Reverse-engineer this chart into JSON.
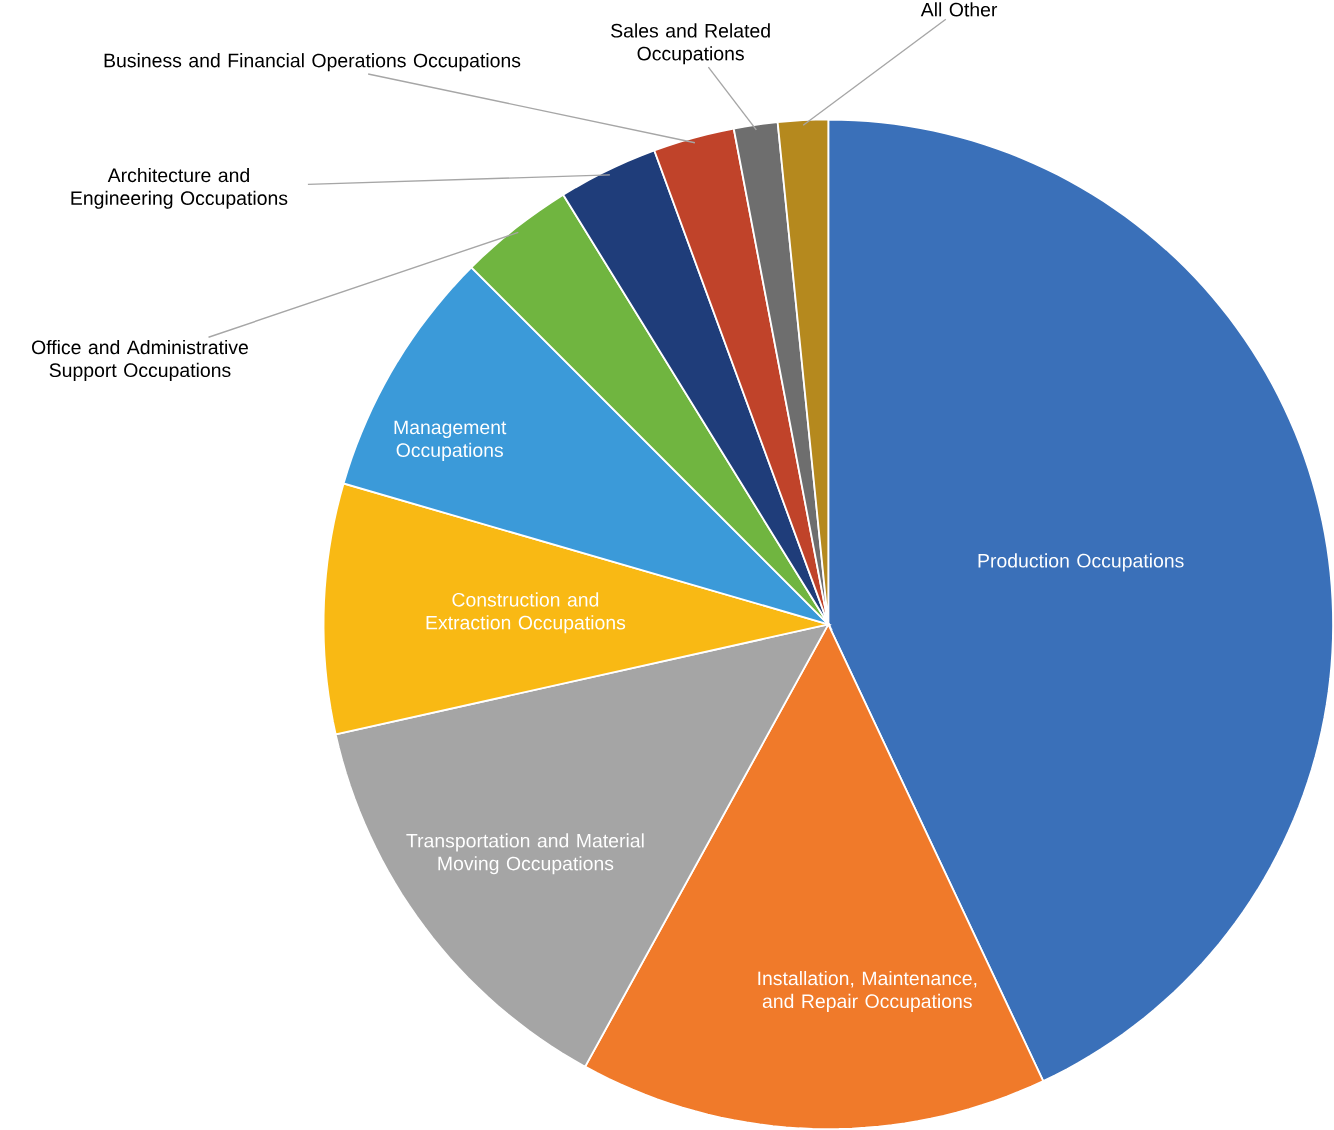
{
  "chart_data": {
    "type": "pie",
    "categories": [
      "Production Occupations",
      "Installation, Maintenance, and Repair Occupations",
      "Transportation and Material Moving Occupations",
      "Construction and Extraction Occupations",
      "Management Occupations",
      "Office and Administrative Support Occupations",
      "Architecture and Engineering Occupations",
      "Business and Financial Operations Occupations",
      "Sales and Related Occupations",
      "All Other"
    ],
    "values": [
      43,
      15,
      13.5,
      8,
      8,
      3.7,
      3.2,
      2.6,
      1.4,
      1.6
    ],
    "colors": [
      "#3a70b9",
      "#f07a2a",
      "#a5a5a5",
      "#f9b914",
      "#3b9ad9",
      "#70b540",
      "#1f3d7a",
      "#c0432a",
      "#6e6e6e",
      "#b5891e"
    ],
    "legend": false
  }
}
